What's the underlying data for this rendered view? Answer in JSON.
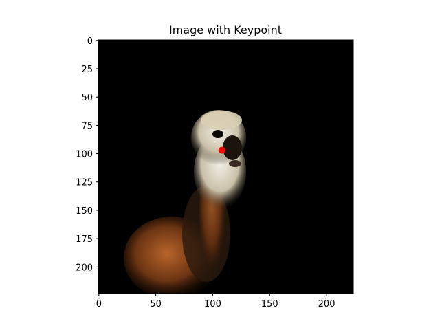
{
  "chart_data": {
    "type": "scatter",
    "title": "Image with Keypoint",
    "xlabel": "",
    "ylabel": "",
    "xlim": [
      -0.5,
      223.5
    ],
    "ylim": [
      223.5,
      -0.5
    ],
    "y_inverted": true,
    "grid": false,
    "legend": "none",
    "background_image": "dog-photo",
    "x_ticks": [
      0,
      50,
      100,
      150,
      200
    ],
    "y_ticks": [
      0,
      25,
      50,
      75,
      100,
      125,
      150,
      175,
      200
    ],
    "x_tick_labels": [
      "0",
      "50",
      "100",
      "150",
      "200"
    ],
    "y_tick_labels": [
      "0",
      "25",
      "50",
      "75",
      "100",
      "125",
      "150",
      "175",
      "200"
    ],
    "series": [
      {
        "points": [
          {
            "x": 108,
            "y": 97
          }
        ],
        "color": "#ff0000"
      }
    ]
  },
  "colors": {
    "image_background": "#000000",
    "keypoint": "#ff0000",
    "fur_light": "#e6e2d8",
    "fur_brown": "#8a4a1e"
  }
}
